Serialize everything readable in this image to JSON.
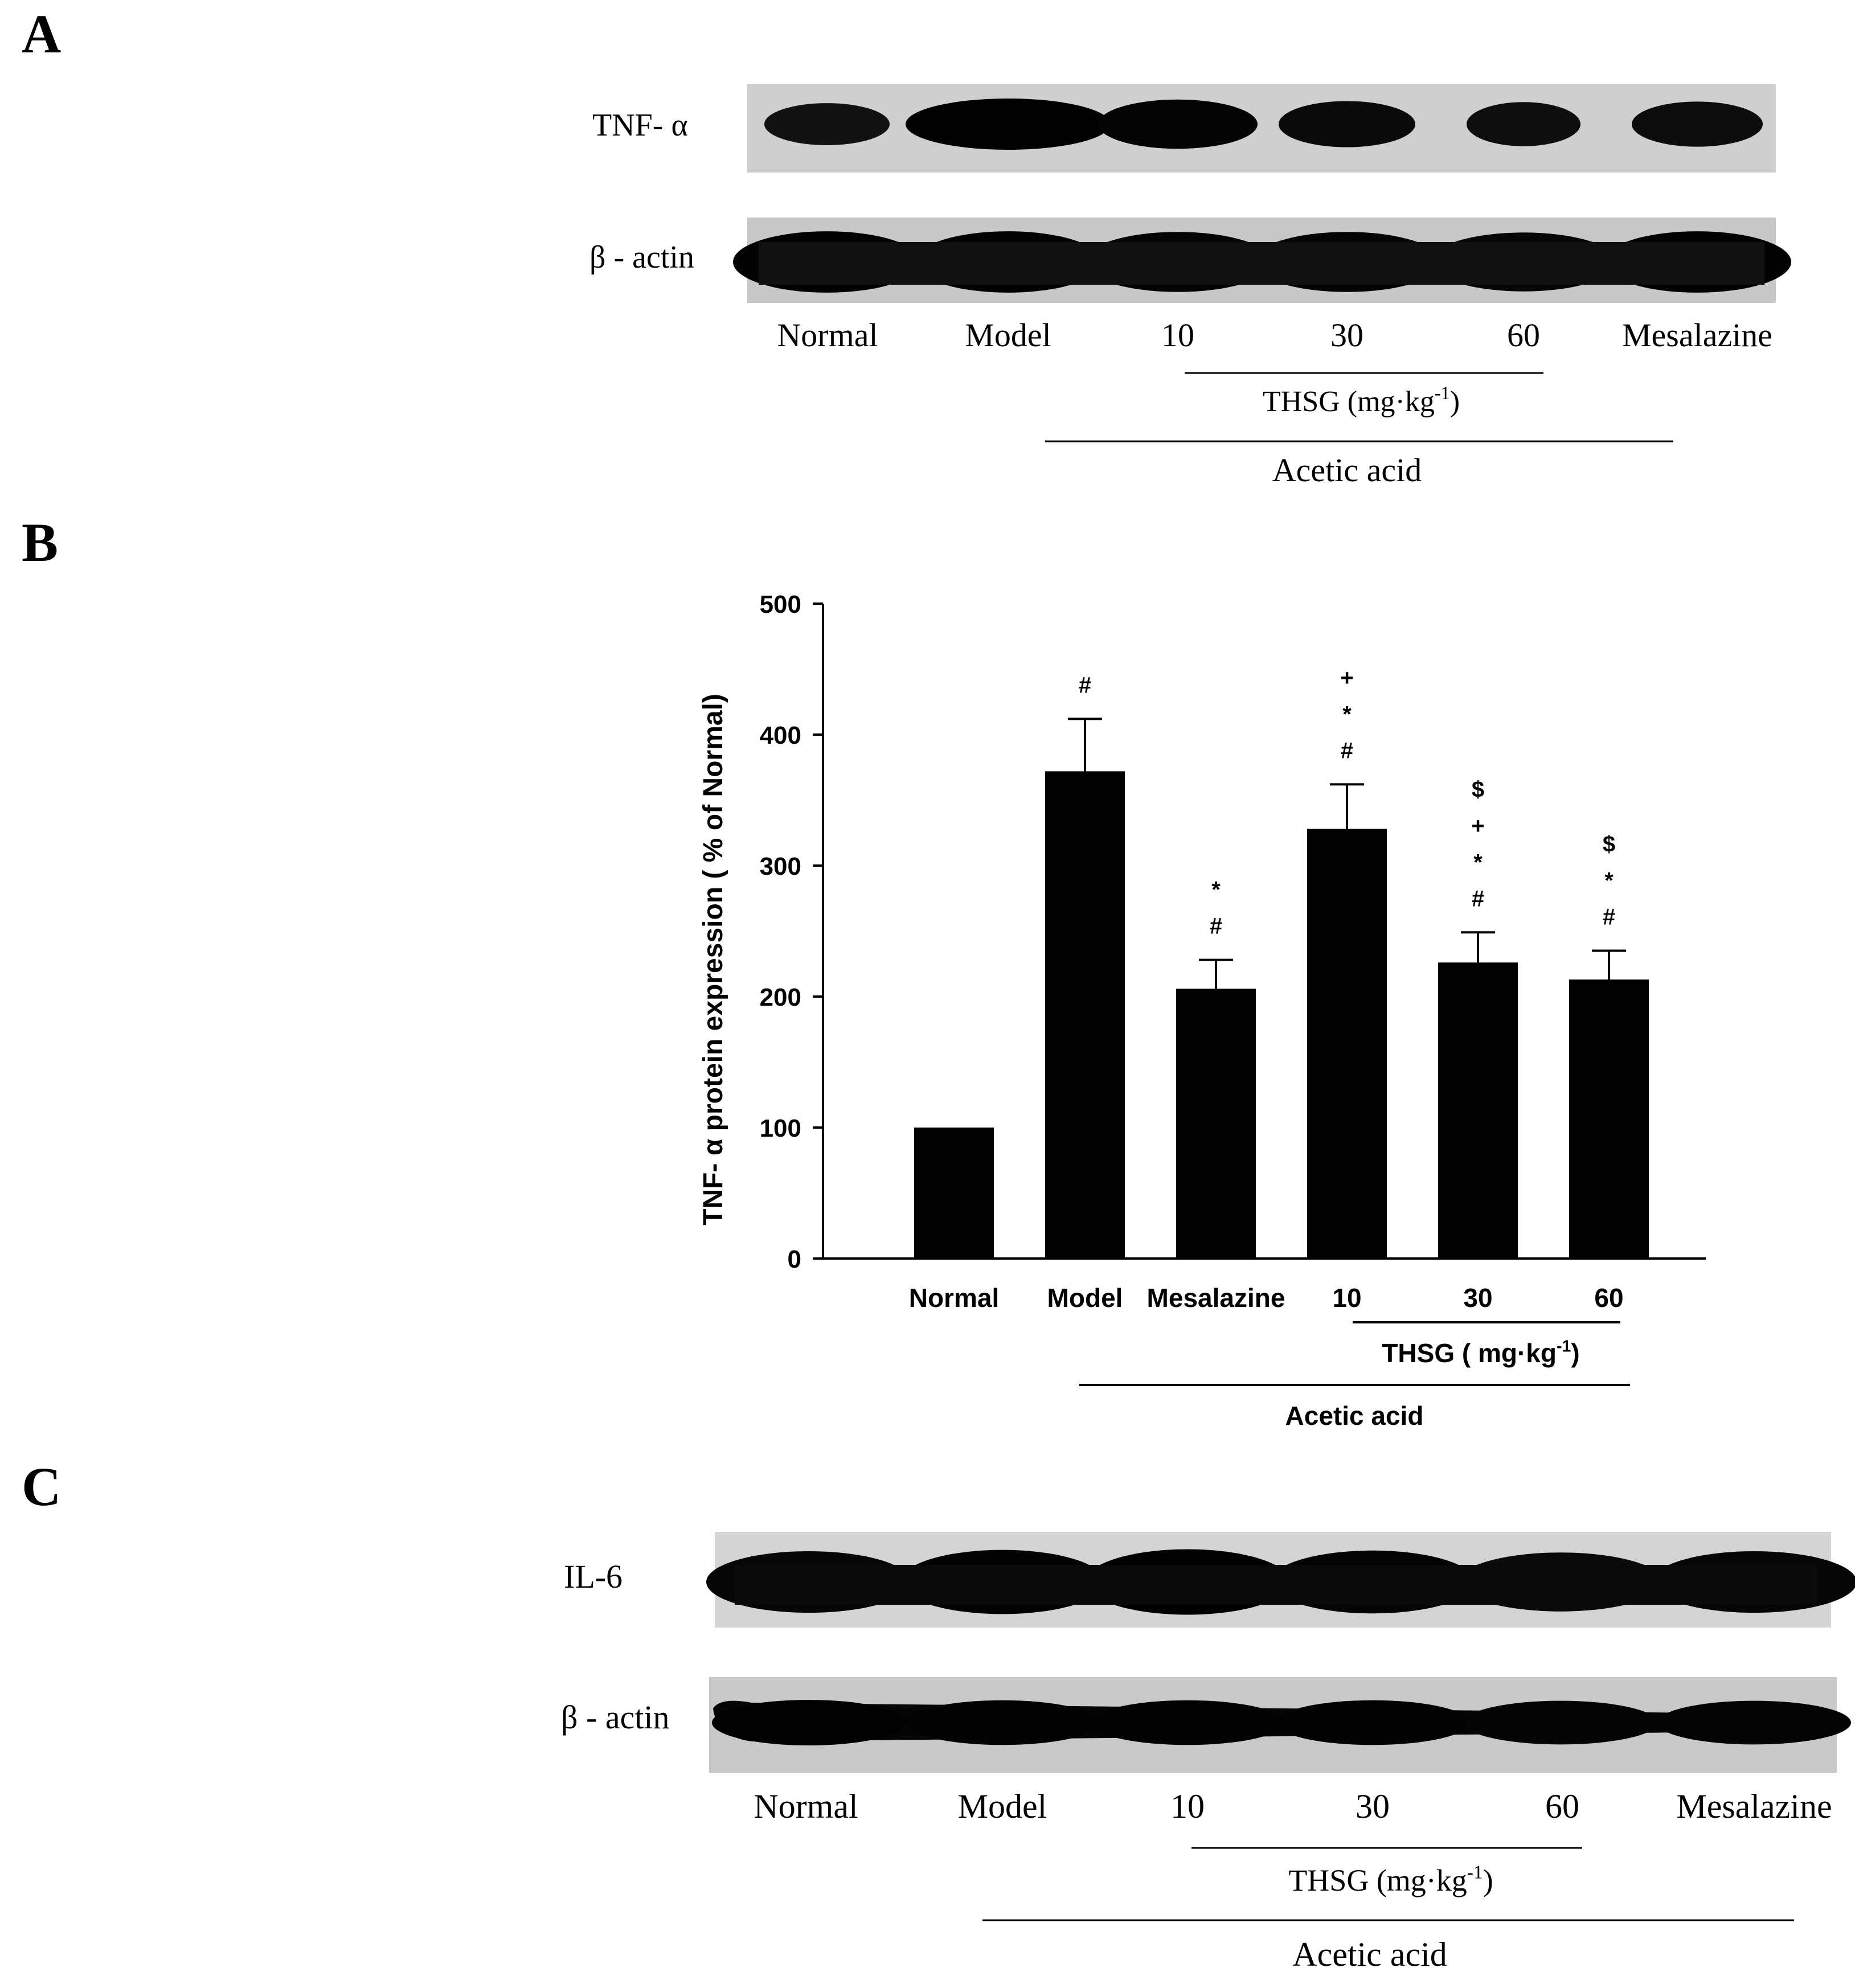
{
  "panels": {
    "a": {
      "letter": "A"
    },
    "b": {
      "letter": "B"
    },
    "c": {
      "letter": "C"
    }
  },
  "blot_a": {
    "row_labels": [
      "TNF- α",
      "β - actin"
    ],
    "lanes": [
      "Normal",
      "Model",
      "10",
      "30",
      "60",
      "Mesalazine"
    ],
    "dose_bracket": {
      "label": "THSG (mg·kg",
      "sup": "-1",
      "tail": ")"
    },
    "acid_bracket": {
      "label": "Acetic acid"
    },
    "band_intensity_tnf": [
      0.55,
      1.0,
      0.9,
      0.75,
      0.65,
      0.7
    ],
    "band_intensity_actin": [
      0.95,
      0.95,
      0.9,
      0.9,
      0.85,
      0.95
    ]
  },
  "blot_c": {
    "row_labels": [
      "IL-6",
      "β - actin"
    ],
    "lanes": [
      "Normal",
      "Model",
      "10",
      "30",
      "60",
      "Mesalazine"
    ],
    "dose_bracket": {
      "label": "THSG (mg·kg",
      "sup": "-1",
      "tail": ")"
    },
    "acid_bracket": {
      "label": "Acetic acid"
    },
    "band_intensity_il6": [
      0.85,
      0.95,
      1.0,
      0.9,
      0.75,
      0.85
    ],
    "band_intensity_actin": [
      1.0,
      0.95,
      0.95,
      0.95,
      0.9,
      0.9
    ]
  },
  "chart_data": {
    "type": "bar",
    "categories": [
      "Normal",
      "Model",
      "Mesalazine",
      "10",
      "30",
      "60"
    ],
    "values": [
      100,
      372,
      206,
      328,
      226,
      213
    ],
    "errors": [
      0,
      40,
      22,
      34,
      23,
      22
    ],
    "significance": [
      [],
      [
        "#"
      ],
      [
        "#",
        "*"
      ],
      [
        "#",
        "*",
        "+"
      ],
      [
        "#",
        "*",
        "+",
        "$"
      ],
      [
        "#",
        "*",
        "$"
      ]
    ],
    "title": "",
    "ylabel": "TNF- α  protein expression ( % of Normal)",
    "xlabel": "",
    "ylim": [
      0,
      500
    ],
    "yticks": [
      0,
      100,
      200,
      300,
      400,
      500
    ],
    "dose_bracket": {
      "label": "THSG ( mg·kg",
      "sup": "-1",
      "tail": ")"
    },
    "acid_bracket": {
      "label": "Acetic acid"
    },
    "grid": false,
    "bar_color": "#000000"
  }
}
